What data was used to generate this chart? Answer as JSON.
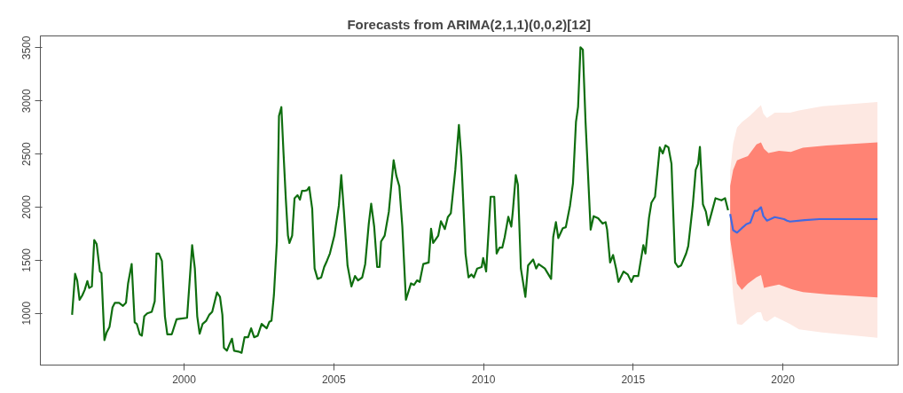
{
  "chart_data": {
    "type": "line",
    "title": "Forecasts from ARIMA(2,1,1)(0,0,2)[12]",
    "xlim": [
      1995.2,
      2023.85
    ],
    "ylim": [
      513,
      3612
    ],
    "xticks": [
      2000,
      2005,
      2010,
      2015,
      2020
    ],
    "yticks": [
      1000,
      1500,
      2000,
      2500,
      3000,
      3500
    ],
    "grid": false,
    "marker": "none",
    "line_style": "solid",
    "series": [
      {
        "color": "#fde8e2",
        "x": [
          2018.24,
          2018.34,
          2018.47,
          2018.63,
          2018.9,
          2019.15,
          2019.27,
          2019.35,
          2019.47,
          2019.73,
          2020.24,
          2020.54,
          2021.32,
          2023.16
        ],
        "values": [
          null,
          null,
          null,
          null,
          null,
          null,
          null,
          null,
          null,
          null,
          null,
          null,
          null,
          null
        ],
        "upper": [
          2340,
          2600,
          2750,
          2800,
          2860,
          2930,
          2960,
          2880,
          2840,
          2890,
          2890,
          2910,
          2950,
          2990
        ],
        "lower": [
          1560,
          1170,
          900,
          890,
          960,
          1010,
          1010,
          940,
          920,
          970,
          900,
          850,
          820,
          770
        ]
      },
      {
        "color": "#ff8374",
        "x": [
          2018.24,
          2018.34,
          2018.47,
          2018.63,
          2018.83,
          2019.12,
          2019.27,
          2019.37,
          2019.52,
          2019.87,
          2020.27,
          2020.37,
          2020.67,
          2021.46,
          2023.16
        ],
        "values": [
          null,
          null,
          null,
          null,
          null,
          null,
          null,
          null,
          null,
          null,
          null,
          null,
          null,
          null,
          null
        ],
        "upper": [
          2200,
          2350,
          2440,
          2460,
          2480,
          2590,
          2610,
          2550,
          2510,
          2530,
          2520,
          2530,
          2560,
          2580,
          2610
        ],
        "lower": [
          1700,
          1510,
          1280,
          1220,
          1280,
          1340,
          1360,
          1240,
          1250,
          1270,
          1230,
          1220,
          1200,
          1180,
          1150
        ]
      },
      {
        "color": "#0f6e0f",
        "x": [
          1996.26,
          1996.36,
          1996.43,
          1996.51,
          1996.6,
          1996.68,
          1996.77,
          1996.83,
          1996.92,
          1997.0,
          1997.08,
          1997.19,
          1997.24,
          1997.34,
          1997.41,
          1997.51,
          1997.61,
          1997.69,
          1997.83,
          1997.96,
          1998.06,
          1998.13,
          1998.25,
          1998.35,
          1998.42,
          1998.52,
          1998.59,
          1998.67,
          1998.77,
          1998.92,
          1999.02,
          1999.08,
          1999.16,
          1999.26,
          1999.36,
          1999.44,
          1999.59,
          1999.75,
          1999.85,
          2000.1,
          2000.27,
          2000.36,
          2000.44,
          2000.52,
          2000.62,
          2000.74,
          2000.84,
          2000.94,
          2001.1,
          2001.2,
          2001.28,
          2001.33,
          2001.43,
          2001.51,
          2001.6,
          2001.67,
          2001.82,
          2001.92,
          2002.02,
          2002.14,
          2002.24,
          2002.34,
          2002.46,
          2002.59,
          2002.76,
          2002.85,
          2002.92,
          2003.0,
          2003.1,
          2003.17,
          2003.25,
          2003.32,
          2003.4,
          2003.47,
          2003.52,
          2003.61,
          2003.69,
          2003.79,
          2003.87,
          2003.94,
          2004.04,
          2004.11,
          2004.18,
          2004.28,
          2004.36,
          2004.46,
          2004.58,
          2004.68,
          2004.77,
          2004.87,
          2005.02,
          2005.17,
          2005.25,
          2005.34,
          2005.46,
          2005.59,
          2005.71,
          2005.81,
          2005.95,
          2006.05,
          2006.17,
          2006.25,
          2006.35,
          2006.45,
          2006.53,
          2006.58,
          2006.7,
          2006.84,
          2007.0,
          2007.09,
          2007.19,
          2007.29,
          2007.41,
          2007.58,
          2007.68,
          2007.78,
          2007.87,
          2007.99,
          2008.17,
          2008.25,
          2008.32,
          2008.49,
          2008.58,
          2008.71,
          2008.81,
          2008.91,
          2009.06,
          2009.18,
          2009.26,
          2009.4,
          2009.5,
          2009.6,
          2009.68,
          2009.79,
          2009.94,
          2009.99,
          2010.09,
          2010.24,
          2010.36,
          2010.44,
          2010.54,
          2010.63,
          2010.71,
          2010.83,
          2010.93,
          2010.98,
          2011.08,
          2011.15,
          2011.25,
          2011.4,
          2011.49,
          2011.66,
          2011.76,
          2011.84,
          2012.05,
          2012.26,
          2012.33,
          2012.42,
          2012.5,
          2012.65,
          2012.75,
          2012.89,
          2012.99,
          2013.09,
          2013.16,
          2013.24,
          2013.32,
          2013.41,
          2013.58,
          2013.68,
          2013.83,
          2013.98,
          2014.08,
          2014.13,
          2014.23,
          2014.33,
          2014.43,
          2014.51,
          2014.68,
          2014.82,
          2014.94,
          2015.02,
          2015.17,
          2015.34,
          2015.41,
          2015.53,
          2015.61,
          2015.73,
          2015.89,
          2015.99,
          2016.08,
          2016.18,
          2016.28,
          2016.4,
          2016.5,
          2016.6,
          2016.77,
          2016.84,
          2016.99,
          2017.09,
          2017.17,
          2017.23,
          2017.33,
          2017.43,
          2017.51,
          2017.63,
          2017.75,
          2017.95,
          2018.07,
          2018.17
        ],
        "values": [
          986,
          1372,
          1310,
          1127,
          1169,
          1220,
          1304,
          1239,
          1253,
          1690,
          1653,
          1394,
          1380,
          747,
          817,
          873,
          1056,
          1099,
          1099,
          1070,
          1099,
          1282,
          1465,
          916,
          901,
          803,
          789,
          972,
          1000,
          1014,
          1113,
          1563,
          1563,
          1493,
          972,
          803,
          803,
          944,
          949,
          958,
          1642,
          1422,
          972,
          809,
          901,
          930,
          986,
          1014,
          1197,
          1155,
          986,
          676,
          648,
          704,
          761,
          648,
          640,
          628,
          775,
          775,
          859,
          775,
          789,
          901,
          859,
          921,
          930,
          1169,
          1676,
          2858,
          2942,
          2520,
          2070,
          1732,
          1662,
          1732,
          2084,
          2112,
          2070,
          2154,
          2154,
          2160,
          2188,
          1985,
          1422,
          1324,
          1338,
          1436,
          1493,
          1563,
          1732,
          2013,
          2301,
          1957,
          1450,
          1253,
          1352,
          1310,
          1338,
          1464,
          1845,
          2033,
          1816,
          1436,
          1436,
          1676,
          1732,
          1957,
          2441,
          2295,
          2196,
          1816,
          1127,
          1282,
          1267,
          1310,
          1296,
          1464,
          1479,
          1797,
          1662,
          1732,
          1867,
          1794,
          1906,
          1943,
          2351,
          2773,
          2464,
          1563,
          1338,
          1366,
          1338,
          1422,
          1436,
          1521,
          1394,
          2098,
          2098,
          1563,
          1619,
          1619,
          1718,
          1909,
          1816,
          1957,
          2301,
          2210,
          1422,
          1155,
          1450,
          1507,
          1422,
          1464,
          1422,
          1324,
          1718,
          1859,
          1709,
          1802,
          1811,
          2013,
          2225,
          2802,
          2942,
          3505,
          3483,
          2802,
          1788,
          1915,
          1895,
          1845,
          1859,
          1788,
          1479,
          1549,
          1422,
          1296,
          1394,
          1366,
          1296,
          1352,
          1352,
          1642,
          1563,
          1901,
          2042,
          2098,
          2562,
          2506,
          2582,
          2562,
          2408,
          1479,
          1436,
          1450,
          1563,
          1633,
          2013,
          2351,
          2408,
          2568,
          2027,
          1957,
          1830,
          1957,
          2084,
          2064,
          2084,
          1971
        ]
      },
      {
        "color": "#4169e1",
        "x": [
          2018.24,
          2018.34,
          2018.47,
          2018.63,
          2018.78,
          2018.91,
          2019.06,
          2019.15,
          2019.27,
          2019.35,
          2019.47,
          2019.73,
          2020.04,
          2020.14,
          2020.24,
          2020.73,
          2021.22,
          2023.16
        ],
        "values": [
          1935,
          1783,
          1760,
          1802,
          1839,
          1853,
          1966,
          1966,
          1999,
          1915,
          1873,
          1906,
          1887,
          1873,
          1864,
          1878,
          1887,
          1887
        ]
      }
    ]
  }
}
